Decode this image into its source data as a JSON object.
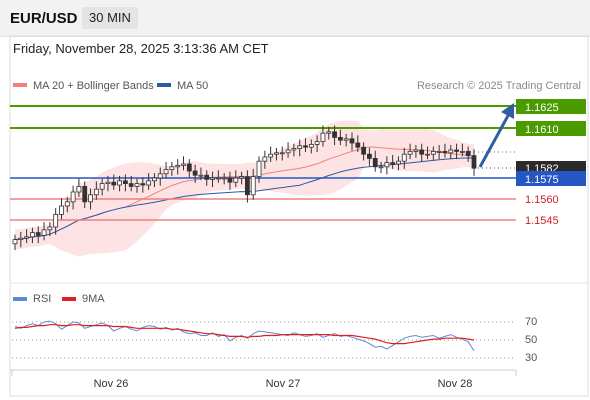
{
  "header": {
    "symbol": "EUR/USD",
    "timeframe": "30 MIN"
  },
  "datetime": "Friday, November 28, 2025 3:13:36 AM CET",
  "legend": {
    "items": [
      {
        "label": "MA 20 + Bollinger Bands",
        "color": "#f08080"
      },
      {
        "label": "MA 50",
        "color": "#2c5aa0"
      }
    ],
    "research": "Research © 2025 Trading Central"
  },
  "colors": {
    "resistance": "#4a9a00",
    "support": "#f08080",
    "pivot": "#2457c5",
    "current": "#222222",
    "candle": "#333333",
    "bb_fill": "#fde3e3",
    "ma20": "#f08080",
    "ma50": "#2c5aa0",
    "arrow": "#2f5fa3",
    "rsi": "#5b8bd8",
    "rsi_ma": "#e02020"
  },
  "price_levels": [
    {
      "label": "1.1625",
      "role": "resistance"
    },
    {
      "label": "1.1610",
      "role": "resistance"
    },
    {
      "label": "1.1582",
      "role": "current"
    },
    {
      "label": "1.1575",
      "role": "pivot"
    },
    {
      "label": "1.1560",
      "role": "support"
    },
    {
      "label": "1.1545",
      "role": "support"
    }
  ],
  "rsi_panel": {
    "legend": [
      {
        "label": "RSI",
        "color": "#5b8bd8"
      },
      {
        "label": "9MA",
        "color": "#e02020"
      }
    ],
    "ticks": [
      "70",
      "50",
      "30"
    ]
  },
  "x_axis": {
    "labels": [
      "Nov 26",
      "Nov 27",
      "Nov 28"
    ]
  },
  "chart_data": {
    "type": "candlestick",
    "x_labels": [
      "Nov 26",
      "Nov 27",
      "Nov 28"
    ],
    "y_labels": [
      "1.1625",
      "1.1610",
      "1.1582",
      "1.1575",
      "1.1560",
      "1.1545"
    ],
    "closes": [
      1.1531,
      1.1532,
      1.1533,
      1.1536,
      1.1534,
      1.1538,
      1.154,
      1.1549,
      1.1555,
      1.1558,
      1.1565,
      1.1569,
      1.1558,
      1.1563,
      1.1567,
      1.1571,
      1.1572,
      1.157,
      1.1573,
      1.1571,
      1.1569,
      1.1571,
      1.157,
      1.1573,
      1.1575,
      1.1578,
      1.1581,
      1.1583,
      1.1584,
      1.1585,
      1.158,
      1.1577,
      1.1577,
      1.1574,
      1.1575,
      1.1575,
      1.1575,
      1.1572,
      1.1575,
      1.1576,
      1.1563,
      1.1576,
      1.1587,
      1.159,
      1.1592,
      1.1593,
      1.1593,
      1.1595,
      1.1596,
      1.1598,
      1.1597,
      1.1599,
      1.1601,
      1.1607,
      1.1608,
      1.1604,
      1.1602,
      1.1603,
      1.16,
      1.1597,
      1.1592,
      1.1589,
      1.1583,
      1.1583,
      1.1586,
      1.1585,
      1.1587,
      1.1592,
      1.1594,
      1.1595,
      1.1592,
      1.1592,
      1.1594,
      1.1594,
      1.1593,
      1.1595,
      1.1594,
      1.1594,
      1.1591,
      1.1582
    ],
    "rsi_ticks": [
      "70",
      "50",
      "30"
    ],
    "rsi_values": [
      65,
      63,
      66,
      68,
      66,
      70,
      71,
      68,
      62,
      66,
      70,
      69,
      63,
      65,
      67,
      69,
      66,
      60,
      63,
      65,
      62,
      60,
      64,
      66,
      65,
      62,
      64,
      61,
      63,
      59,
      57,
      58,
      55,
      55,
      58,
      54,
      56,
      49,
      53,
      55,
      52,
      57,
      60,
      59,
      58,
      57,
      56,
      55,
      58,
      56,
      54,
      55,
      57,
      53,
      55,
      57,
      54,
      55,
      53,
      51,
      49,
      46,
      42,
      43,
      40,
      44,
      48,
      52,
      54,
      55,
      53,
      54,
      55,
      52,
      54,
      56,
      53,
      51,
      48,
      38
    ],
    "rsi_ma_values": [
      63,
      64,
      64,
      65,
      66,
      66,
      67,
      67,
      66,
      66,
      67,
      67,
      66,
      66,
      66,
      66,
      66,
      65,
      65,
      65,
      64,
      63,
      63,
      63,
      63,
      63,
      63,
      62,
      62,
      61,
      60,
      59,
      58,
      57,
      57,
      56,
      55,
      54,
      54,
      54,
      53,
      54,
      54,
      55,
      55,
      55,
      56,
      56,
      56,
      56,
      56,
      56,
      56,
      56,
      56,
      55,
      55,
      55,
      55,
      54,
      53,
      52,
      51,
      49,
      47,
      46,
      46,
      46,
      47,
      48,
      49,
      50,
      51,
      51,
      52,
      52,
      52,
      52,
      51,
      50
    ]
  }
}
